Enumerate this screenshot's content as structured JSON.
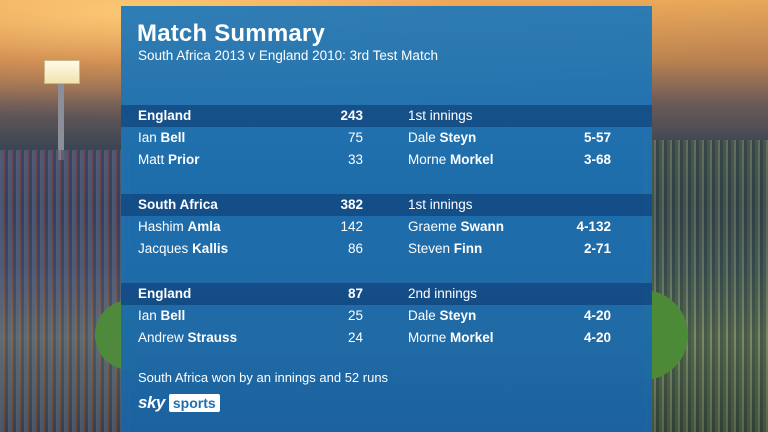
{
  "title": "Match Summary",
  "subtitle": "South Africa 2013 v England 2010:  3rd Test Match",
  "innings": [
    {
      "team": "England",
      "total": "243",
      "label": "1st innings",
      "batters": [
        {
          "first": "Ian",
          "last": "Bell",
          "runs": "75"
        },
        {
          "first": "Matt",
          "last": "Prior",
          "runs": "33"
        }
      ],
      "bowlers": [
        {
          "first": "Dale",
          "last": "Steyn",
          "figures": "5-57"
        },
        {
          "first": "Morne",
          "last": "Morkel",
          "figures": "3-68"
        }
      ]
    },
    {
      "team": "South Africa",
      "total": "382",
      "label": "1st innings",
      "batters": [
        {
          "first": "Hashim",
          "last": "Amla",
          "runs": "142"
        },
        {
          "first": "Jacques",
          "last": "Kallis",
          "runs": "86"
        }
      ],
      "bowlers": [
        {
          "first": "Graeme",
          "last": "Swann",
          "figures": "4-132"
        },
        {
          "first": "Steven",
          "last": "Finn",
          "figures": "2-71"
        }
      ]
    },
    {
      "team": "England",
      "total": "87",
      "label": "2nd innings",
      "batters": [
        {
          "first": "Ian",
          "last": "Bell",
          "runs": "25"
        },
        {
          "first": "Andrew",
          "last": "Strauss",
          "runs": "24"
        }
      ],
      "bowlers": [
        {
          "first": "Dale",
          "last": "Steyn",
          "figures": "4-20"
        },
        {
          "first": "Morne",
          "last": "Morkel",
          "figures": "4-20"
        }
      ]
    }
  ],
  "result": "South Africa won by an innings and 52 runs",
  "logo": {
    "sky": "sky",
    "sports": "sports"
  },
  "colors": {
    "panel": "#1f78b9",
    "header_band": "#0e3c73"
  }
}
